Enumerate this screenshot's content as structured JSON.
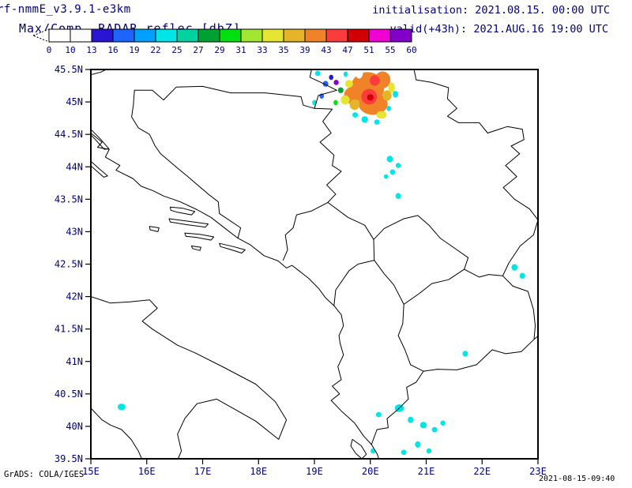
{
  "header": {
    "model_line": "rf-nmmE_v3.9.1-e3km",
    "product_line": "Max/Comp. RADAR reflec.[dbZ]",
    "init_line": "initialisation: 2021.08.15. 00:00 UTC",
    "valid_line": "valid(+43h): 2021.AUG.16 19:00 UTC"
  },
  "colorbar": {
    "unit": "dbZ",
    "arrow_color": "#ffffff",
    "tick_labels": [
      "0",
      "10",
      "13",
      "16",
      "19",
      "22",
      "25",
      "27",
      "29",
      "31",
      "33",
      "35",
      "39",
      "43",
      "47",
      "51",
      "55",
      "60"
    ],
    "segment_colors": [
      "#ffffff",
      "#fbfbfb",
      "#2814d2",
      "#1e64ff",
      "#00a0ff",
      "#00e6e6",
      "#00d2a0",
      "#00a032",
      "#00e010",
      "#a0e632",
      "#e6e632",
      "#e6b428",
      "#f08228",
      "#fa3c3c",
      "#d20000",
      "#f000d2",
      "#8200c8"
    ]
  },
  "axes": {
    "lat_labels": [
      "45.5N",
      "45N",
      "44.5N",
      "44N",
      "43.5N",
      "43N",
      "42.5N",
      "42N",
      "41.5N",
      "41N",
      "40.5N",
      "40N",
      "39.5N"
    ],
    "lon_labels": [
      "15E",
      "16E",
      "17E",
      "18E",
      "19E",
      "20E",
      "21E",
      "22E",
      "23E"
    ],
    "lon_range": [
      15,
      23
    ],
    "lat_range": [
      39.5,
      45.5
    ]
  },
  "colors": {
    "text_blue": "#000080",
    "frame": "#000000",
    "border": "#000000",
    "background": "#ffffff"
  },
  "radar_cells": [
    {
      "lon": 19.95,
      "lat": 45.22,
      "rx": 0.3,
      "ry": 0.24,
      "color": "#f08228"
    },
    {
      "lon": 20.05,
      "lat": 44.97,
      "rx": 0.26,
      "ry": 0.17,
      "color": "#f08228"
    },
    {
      "lon": 19.67,
      "lat": 45.1,
      "rx": 0.14,
      "ry": 0.13,
      "color": "#f08228"
    },
    {
      "lon": 20.22,
      "lat": 45.34,
      "rx": 0.14,
      "ry": 0.13,
      "color": "#f08228"
    },
    {
      "lon": 19.72,
      "lat": 44.96,
      "rx": 0.09,
      "ry": 0.08,
      "color": "#e6b428"
    },
    {
      "lon": 20.3,
      "lat": 45.1,
      "rx": 0.08,
      "ry": 0.08,
      "color": "#e6b428"
    },
    {
      "lon": 19.55,
      "lat": 45.03,
      "rx": 0.08,
      "ry": 0.07,
      "color": "#e6e632"
    },
    {
      "lon": 20.2,
      "lat": 44.8,
      "rx": 0.09,
      "ry": 0.06,
      "color": "#e6e632"
    },
    {
      "lon": 20.38,
      "lat": 45.22,
      "rx": 0.06,
      "ry": 0.08,
      "color": "#e6e632"
    },
    {
      "lon": 19.62,
      "lat": 45.28,
      "rx": 0.07,
      "ry": 0.06,
      "color": "#e6e632"
    },
    {
      "lon": 19.98,
      "lat": 45.08,
      "rx": 0.14,
      "ry": 0.12,
      "color": "#fa3c3c"
    },
    {
      "lon": 20.08,
      "lat": 45.33,
      "rx": 0.09,
      "ry": 0.08,
      "color": "#fa3c3c"
    },
    {
      "lon": 20.0,
      "lat": 45.07,
      "rx": 0.06,
      "ry": 0.05,
      "color": "#d20000"
    },
    {
      "lon": 19.8,
      "lat": 45.46,
      "rx": 0.07,
      "ry": 0.1,
      "color": "#ffffff"
    },
    {
      "lon": 19.47,
      "lat": 45.18,
      "rx": 0.05,
      "ry": 0.045,
      "color": "#00a032"
    },
    {
      "lon": 19.38,
      "lat": 44.99,
      "rx": 0.04,
      "ry": 0.04,
      "color": "#00e010"
    },
    {
      "lon": 19.2,
      "lat": 45.28,
      "rx": 0.05,
      "ry": 0.045,
      "color": "#1e64ff"
    },
    {
      "lon": 19.13,
      "lat": 45.09,
      "rx": 0.04,
      "ry": 0.04,
      "color": "#1e64ff"
    },
    {
      "lon": 19.3,
      "lat": 45.38,
      "rx": 0.04,
      "ry": 0.04,
      "color": "#2814d2"
    },
    {
      "lon": 19.39,
      "lat": 45.3,
      "rx": 0.045,
      "ry": 0.04,
      "color": "#8200c8"
    },
    {
      "lon": 19.06,
      "lat": 45.44,
      "rx": 0.05,
      "ry": 0.04,
      "color": "#00e6e6"
    },
    {
      "lon": 19.56,
      "lat": 45.43,
      "rx": 0.04,
      "ry": 0.04,
      "color": "#00e6e6"
    },
    {
      "lon": 19.0,
      "lat": 44.99,
      "rx": 0.04,
      "ry": 0.04,
      "color": "#00e6e6"
    },
    {
      "lon": 19.9,
      "lat": 44.73,
      "rx": 0.06,
      "ry": 0.05,
      "color": "#00e6e6"
    },
    {
      "lon": 20.12,
      "lat": 44.69,
      "rx": 0.05,
      "ry": 0.04,
      "color": "#00e6e6"
    },
    {
      "lon": 20.45,
      "lat": 45.12,
      "rx": 0.05,
      "ry": 0.05,
      "color": "#00e6e6"
    },
    {
      "lon": 19.73,
      "lat": 44.8,
      "rx": 0.05,
      "ry": 0.04,
      "color": "#00e6e6"
    },
    {
      "lon": 20.33,
      "lat": 44.9,
      "rx": 0.04,
      "ry": 0.04,
      "color": "#00e6e6"
    },
    {
      "lon": 20.35,
      "lat": 44.12,
      "rx": 0.055,
      "ry": 0.05,
      "color": "#00e6e6"
    },
    {
      "lon": 20.5,
      "lat": 44.02,
      "rx": 0.045,
      "ry": 0.04,
      "color": "#00e6e6"
    },
    {
      "lon": 20.4,
      "lat": 43.92,
      "rx": 0.05,
      "ry": 0.04,
      "color": "#00e6e6"
    },
    {
      "lon": 20.28,
      "lat": 43.85,
      "rx": 0.04,
      "ry": 0.035,
      "color": "#00e6e6"
    },
    {
      "lon": 20.5,
      "lat": 43.55,
      "rx": 0.05,
      "ry": 0.045,
      "color": "#00e6e6"
    },
    {
      "lon": 22.58,
      "lat": 42.45,
      "rx": 0.055,
      "ry": 0.05,
      "color": "#00e6e6"
    },
    {
      "lon": 22.72,
      "lat": 42.32,
      "rx": 0.05,
      "ry": 0.045,
      "color": "#00e6e6"
    },
    {
      "lon": 21.7,
      "lat": 41.12,
      "rx": 0.05,
      "ry": 0.045,
      "color": "#00e6e6"
    },
    {
      "lon": 20.52,
      "lat": 40.28,
      "rx": 0.08,
      "ry": 0.06,
      "color": "#00e6e6"
    },
    {
      "lon": 20.72,
      "lat": 40.1,
      "rx": 0.05,
      "ry": 0.05,
      "color": "#00e6e6"
    },
    {
      "lon": 20.95,
      "lat": 40.02,
      "rx": 0.06,
      "ry": 0.05,
      "color": "#00e6e6"
    },
    {
      "lon": 21.15,
      "lat": 39.95,
      "rx": 0.05,
      "ry": 0.04,
      "color": "#00e6e6"
    },
    {
      "lon": 20.85,
      "lat": 39.72,
      "rx": 0.05,
      "ry": 0.05,
      "color": "#00e6e6"
    },
    {
      "lon": 21.3,
      "lat": 40.05,
      "rx": 0.045,
      "ry": 0.04,
      "color": "#00e6e6"
    },
    {
      "lon": 20.6,
      "lat": 39.6,
      "rx": 0.05,
      "ry": 0.04,
      "color": "#00e6e6"
    },
    {
      "lon": 21.05,
      "lat": 39.62,
      "rx": 0.045,
      "ry": 0.04,
      "color": "#00e6e6"
    },
    {
      "lon": 20.05,
      "lat": 39.62,
      "rx": 0.045,
      "ry": 0.04,
      "color": "#00e6e6"
    },
    {
      "lon": 20.15,
      "lat": 40.18,
      "rx": 0.05,
      "ry": 0.04,
      "color": "#00e6e6"
    },
    {
      "lon": 15.55,
      "lat": 40.3,
      "rx": 0.07,
      "ry": 0.05,
      "color": "#00e6e6"
    }
  ],
  "footer": {
    "credit": "GrADS: COLA/IGES",
    "timestamp": "2021-08-15-09:40"
  }
}
